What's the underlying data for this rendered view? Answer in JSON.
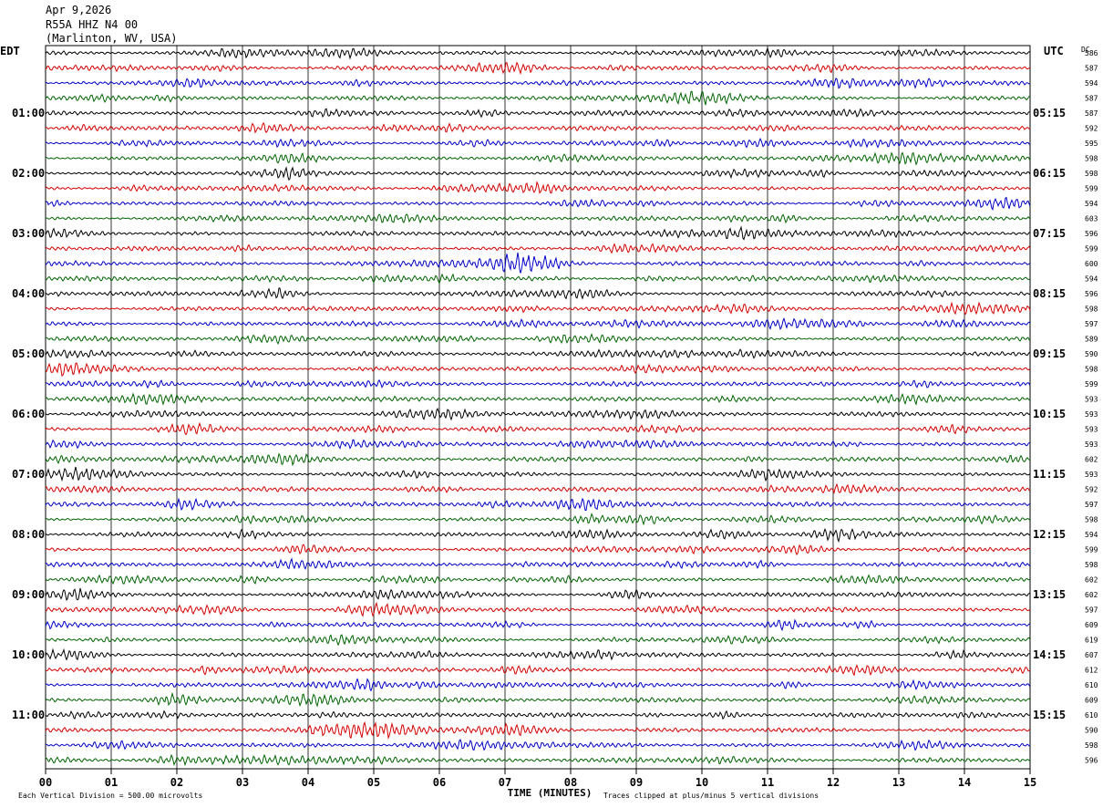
{
  "header": {
    "date": "Apr 9,2026",
    "station": "R55A HHZ N4 00",
    "location": "(Marlinton, WV, USA)"
  },
  "chart_data": {
    "type": "line",
    "left_timezone": "EDT",
    "right_timezone": "UTC",
    "dc_label": "DC",
    "xlabel": "TIME (MINUTES)",
    "x_ticks": [
      "00",
      "01",
      "02",
      "03",
      "04",
      "05",
      "06",
      "07",
      "08",
      "09",
      "10",
      "11",
      "12",
      "13",
      "14",
      "15"
    ],
    "left_hour_labels": [
      "01:00",
      "02:00",
      "03:00",
      "04:00",
      "05:00",
      "06:00",
      "07:00",
      "08:00",
      "09:00",
      "10:00",
      "11:00"
    ],
    "right_hour_labels": [
      "05:15",
      "06:15",
      "07:15",
      "08:15",
      "09:15",
      "10:15",
      "11:15",
      "12:15",
      "13:15",
      "14:15",
      "15:15"
    ],
    "dc_offsets": [
      586,
      587,
      594,
      587,
      587,
      592,
      595,
      598,
      598,
      599,
      594,
      603,
      596,
      599,
      600,
      594,
      596,
      598,
      597,
      589,
      590,
      598,
      599,
      593,
      593,
      593,
      593,
      602,
      593,
      592,
      597,
      598,
      594,
      599,
      598,
      602,
      602,
      597,
      609,
      619,
      607,
      612,
      610,
      609,
      610,
      590,
      598,
      596
    ],
    "trace_colors": [
      "#000000",
      "#d40000",
      "#0000c8",
      "#006400"
    ],
    "footer_scale": "Each Vertical Division =   500.00 microvolts",
    "footer_clip": "Traces clipped at plus/minus 5 vertical divisions"
  }
}
